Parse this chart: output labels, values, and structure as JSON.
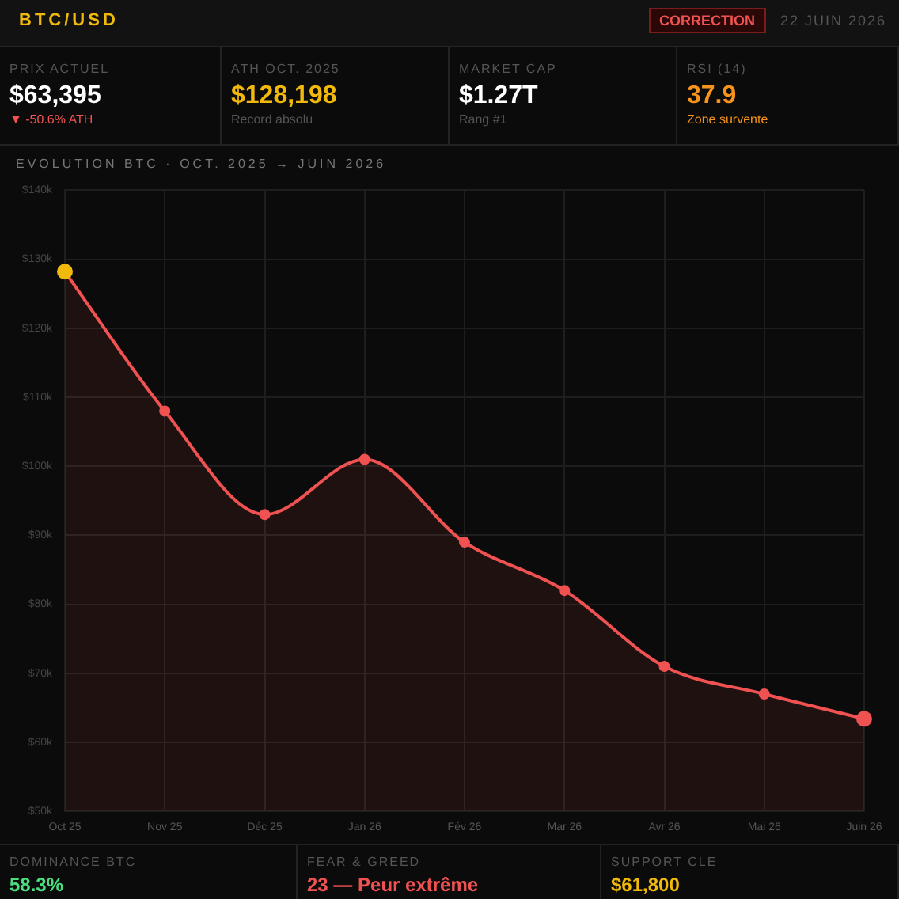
{
  "chart_data": {
    "type": "area",
    "title": "BTC/USD",
    "subtitle": "EVOLUTION BTC · OCT. 2025 → JUIN 2026",
    "categories": [
      "Oct 25",
      "Nov 25",
      "Déc 25",
      "Jan 26",
      "Fév 26",
      "Mar 26",
      "Avr 26",
      "Mai 26",
      "Juin 26"
    ],
    "series": [
      {
        "color": "#f05252",
        "colors": [
          "#f0b90b",
          "#f05252",
          "#f05252",
          "#f05252",
          "#f05252",
          "#f05252",
          "#f05252",
          "#f05252",
          "#f05252"
        ],
        "values": [
          128.2,
          108,
          93,
          101,
          89,
          82,
          71,
          67,
          63.4
        ]
      }
    ],
    "ylim": [
      50,
      140
    ],
    "yticks": [
      {
        "value": 50,
        "label": "$50k"
      },
      {
        "value": 60,
        "label": "$60k"
      },
      {
        "value": 70,
        "label": "$70k"
      },
      {
        "value": 80,
        "label": "$80k"
      },
      {
        "value": 90,
        "label": "$90k"
      },
      {
        "value": 100,
        "label": "$100k"
      },
      {
        "value": 110,
        "label": "$110k"
      },
      {
        "value": 120,
        "label": "$120k"
      },
      {
        "value": 130,
        "label": "$130k"
      },
      {
        "value": 140,
        "label": "$140k"
      }
    ],
    "grid": true,
    "legend": false,
    "marker": "circle",
    "line_style": "solid",
    "annotations": [
      "CORRECTION",
      "22 JUIN 2026",
      "PRIX ACTUEL",
      "$63,395",
      "▼ -50.6% ATH",
      "ATH OCT. 2025",
      "$128,198",
      "Record absolu",
      "MARKET CAP",
      "$1.27T",
      "Rang #1",
      "RSI (14)",
      "37.9",
      "Zone survente",
      "DOMINANCE BTC",
      "58.3%",
      "FEAR & GREED",
      "23 — Peur extrême",
      "SUPPORT CLE",
      "$61,800"
    ]
  }
}
